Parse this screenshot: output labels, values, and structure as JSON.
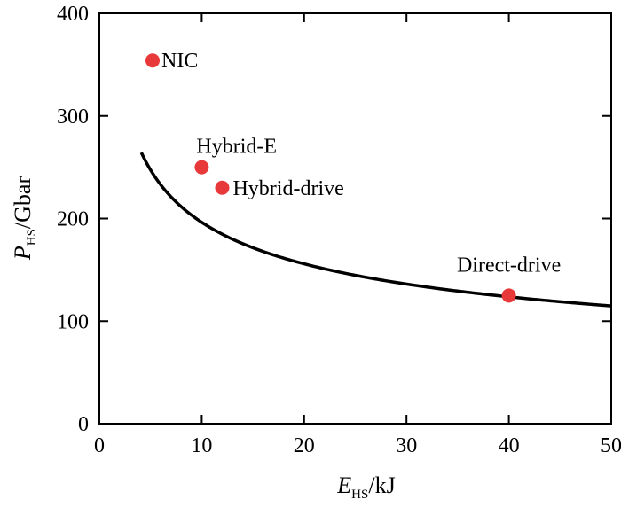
{
  "chart_data": {
    "type": "scatter",
    "title": "",
    "xlabel": {
      "symbol": "E",
      "subscript": "HS",
      "unit": "/kJ"
    },
    "ylabel": {
      "symbol": "P",
      "subscript": "HS",
      "unit": "/Gbar"
    },
    "xlim": [
      0,
      50
    ],
    "ylim": [
      0,
      400
    ],
    "xticks": [
      0,
      10,
      20,
      30,
      40,
      50
    ],
    "yticks": [
      0,
      100,
      200,
      300,
      400
    ],
    "xtick_labels": [
      "0",
      "10",
      "20",
      "30",
      "40",
      "50"
    ],
    "ytick_labels": [
      "0",
      "100",
      "200",
      "300",
      "400"
    ],
    "grid": false,
    "curve": {
      "relation": "P = k * E^(-1/3)",
      "k": 423,
      "x_start": 4.1,
      "x_end": 50,
      "color": "#000000"
    },
    "points": [
      {
        "label": "NIC",
        "x": 5.2,
        "y": 354
      },
      {
        "label": "Hybrid-E",
        "x": 10,
        "y": 250
      },
      {
        "label": "Hybrid-drive",
        "x": 12,
        "y": 230
      },
      {
        "label": "Direct-drive",
        "x": 40,
        "y": 125
      }
    ],
    "point_color": "#e8393a"
  }
}
